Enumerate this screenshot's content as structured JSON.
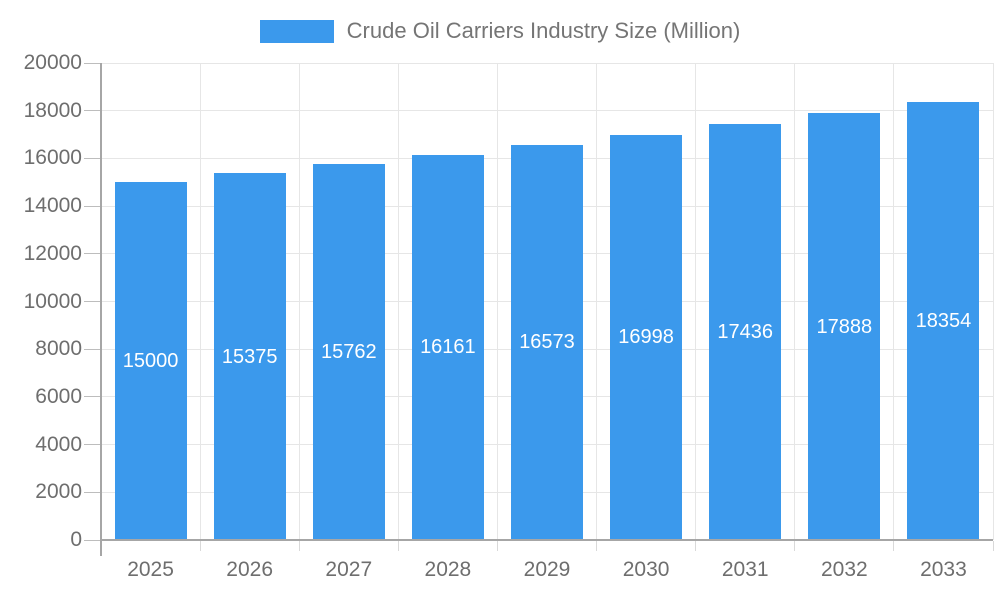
{
  "legend": {
    "label": "Crude Oil Carriers Industry Size (Million)"
  },
  "chart_data": {
    "type": "bar",
    "title": "Crude Oil Carriers Industry Size (Million)",
    "categories": [
      "2025",
      "2026",
      "2027",
      "2028",
      "2029",
      "2030",
      "2031",
      "2032",
      "2033"
    ],
    "series": [
      {
        "name": "Crude Oil Carriers Industry Size (Million)",
        "values": [
          15000,
          15375,
          15762,
          16161,
          16573,
          16998,
          17436,
          17888,
          18354
        ]
      }
    ],
    "value_labels": [
      "15000",
      "15375",
      "15762",
      "16161",
      "16573",
      "16998",
      "17436",
      "17888",
      "18354"
    ],
    "xlabel": "",
    "ylabel": "",
    "ylim": [
      0,
      20000
    ],
    "ytick_step": 2000,
    "yticks": [
      0,
      2000,
      4000,
      6000,
      8000,
      10000,
      12000,
      14000,
      16000,
      18000,
      20000
    ],
    "grid": true,
    "legend_position": "top"
  },
  "colors": {
    "bar": "#3b99ec",
    "bar_value_label": "#ffffff",
    "gridline": "#e6e6e6",
    "axis_line": "#a6a6a6",
    "minor_tick": "#bdbdbd",
    "below_axis_tick": "#d9d9d9",
    "tick_label": "#6e6e6e",
    "legend_text": "#757575",
    "background": "#ffffff"
  }
}
